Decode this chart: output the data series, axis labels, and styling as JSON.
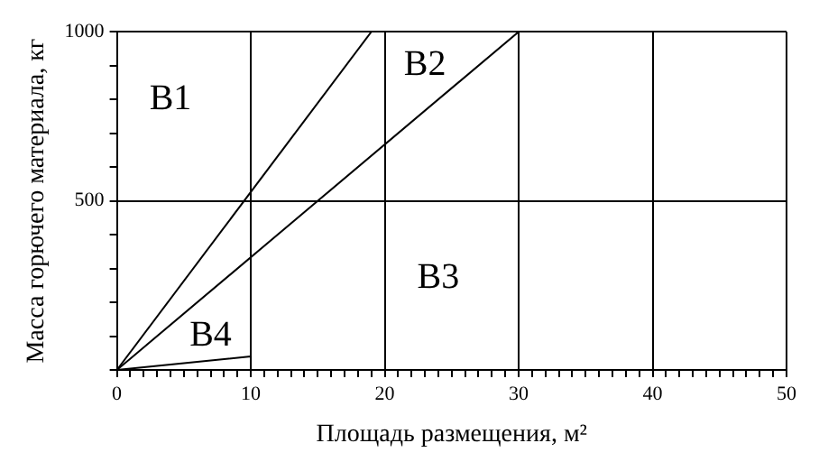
{
  "chart_data": {
    "type": "line",
    "xlabel": "Площадь размещения, м²",
    "ylabel": "Масса горючего материала, кг",
    "series": [
      {
        "color": "#000000",
        "x": [
          0,
          19
        ],
        "values": [
          0,
          1000
        ]
      },
      {
        "color": "#000000",
        "x": [
          0,
          30
        ],
        "values": [
          0,
          1000
        ]
      },
      {
        "color": "#000000",
        "x": [
          0,
          10,
          10
        ],
        "values": [
          0,
          40,
          0
        ]
      }
    ],
    "xlim": [
      0,
      50
    ],
    "xticks": [
      0,
      {
        "value": 1,
        "label": null
      },
      {
        "value": 2,
        "label": null
      },
      {
        "value": 3,
        "label": null
      },
      {
        "value": 4,
        "label": null
      },
      {
        "value": 5,
        "label": null
      },
      {
        "value": 6,
        "label": null
      },
      {
        "value": 7,
        "label": null
      },
      {
        "value": 8,
        "label": null
      },
      {
        "value": 9,
        "label": null
      },
      10,
      {
        "value": 11,
        "label": null
      },
      {
        "value": 12,
        "label": null
      },
      {
        "value": 13,
        "label": null
      },
      {
        "value": 14,
        "label": null
      },
      {
        "value": 15,
        "label": null
      },
      {
        "value": 16,
        "label": null
      },
      {
        "value": 17,
        "label": null
      },
      {
        "value": 18,
        "label": null
      },
      {
        "value": 19,
        "label": null
      },
      20,
      {
        "value": 21,
        "label": null
      },
      {
        "value": 22,
        "label": null
      },
      {
        "value": 23,
        "label": null
      },
      {
        "value": 24,
        "label": null
      },
      {
        "value": 25,
        "label": null
      },
      {
        "value": 26,
        "label": null
      },
      {
        "value": 27,
        "label": null
      },
      {
        "value": 28,
        "label": null
      },
      {
        "value": 29,
        "label": null
      },
      30,
      {
        "value": 31,
        "label": null
      },
      {
        "value": 32,
        "label": null
      },
      {
        "value": 33,
        "label": null
      },
      {
        "value": 34,
        "label": null
      },
      {
        "value": 35,
        "label": null
      },
      {
        "value": 36,
        "label": null
      },
      {
        "value": 37,
        "label": null
      },
      {
        "value": 38,
        "label": null
      },
      {
        "value": 39,
        "label": null
      },
      40,
      {
        "value": 41,
        "label": null
      },
      {
        "value": 42,
        "label": null
      },
      {
        "value": 43,
        "label": null
      },
      {
        "value": 44,
        "label": null
      },
      {
        "value": 45,
        "label": null
      },
      {
        "value": 46,
        "label": null
      },
      {
        "value": 47,
        "label": null
      },
      {
        "value": 48,
        "label": null
      },
      {
        "value": 49,
        "label": null
      },
      50
    ],
    "ylim": [
      0,
      1000
    ],
    "yticks": [
      {
        "value": 0,
        "label": null
      },
      {
        "value": 100,
        "label": null
      },
      {
        "value": 200,
        "label": null
      },
      {
        "value": 300,
        "label": null
      },
      {
        "value": 400,
        "label": null
      },
      500,
      {
        "value": 600,
        "label": null
      },
      {
        "value": 700,
        "label": null
      },
      {
        "value": 800,
        "label": null
      },
      {
        "value": 900,
        "label": null
      },
      1000
    ],
    "grid": "major",
    "marker": "none",
    "line_style": "solid",
    "legend": false,
    "annotations": [
      "B1",
      "B2",
      "B3",
      "B4"
    ]
  }
}
